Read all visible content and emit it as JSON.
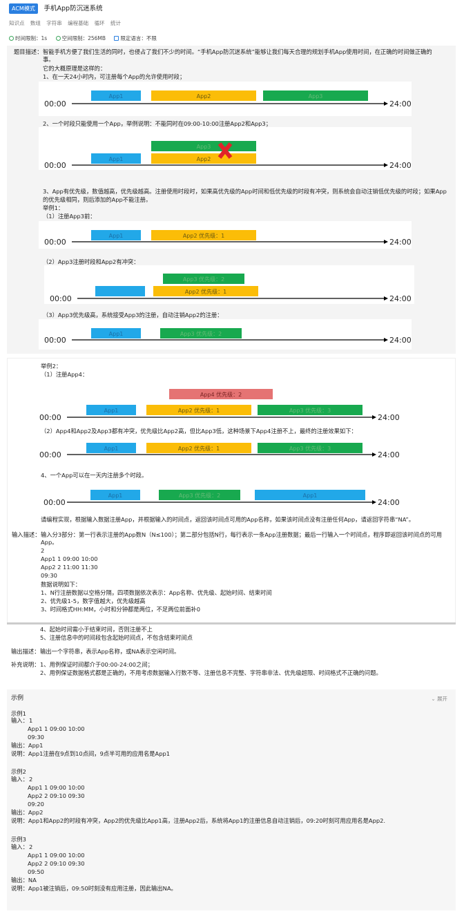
{
  "header": {
    "badge": "ACM模式",
    "title": "手机App防沉迷系统",
    "tags": [
      "知识点",
      "数组",
      "字符串",
      "编程基础",
      "循环",
      "统计"
    ],
    "limits": [
      "时间限制：1s",
      "空间限制：256MB",
      "限定语言：不限"
    ]
  },
  "desc": {
    "label": "题目描述：",
    "line1": "智能手机方便了我们生活的同时，也侵占了我们不少的时间。“手机App防沉迷系统”能够让我们每天合理的规划手机App使用时间，在正确的时间做正确的",
    "line2": "事。",
    "intro": "它的大概原理是这样的：",
    "p1": "1、在一天24小时内，可注册每个App的允许使用时段；",
    "p2": "2、一个时段只能使用一个App，举例说明：不能同时在09:00-10:00注册App2和App3；",
    "p3a": "3、App有优先级，数值越高，优先级越高。注册使用时段时，如果高优先级的App时间和低优先级的时段有冲突，则系统会自动注销低优先级的时段；如果App",
    "p3b": "的优先级相同，则后添加的App不能注册。",
    "ex1": "举例1：",
    "ex1a": "（1）注册App3前：",
    "ex1b": "（2）App3注册时段和App2有冲突：",
    "ex1c": "（3）App3优先级高，系统接受App3的注册，自动注销App2的注册：",
    "ex2": "举例2：",
    "ex2a": "（1）注册App4：",
    "ex2b": "（2）App4和App2及App3都有冲突，优先级比App2高，但比App3低，这种场景下App4注册不上，最终的注册效果如下：",
    "p4": "4、一个App可以在一天内注册多个时段。",
    "task": "请编程实现，根据输入数据注册App，并根据输入的时间点，返回该时间点可用的App名称，如果该时间点没有注册任何App，请返回字符串“NA”。"
  },
  "diagram": {
    "start": "00:00",
    "end": "24:00",
    "app1": "App1",
    "app2": "App2",
    "app3": "App3",
    "app2p1": "App2 优先级：1",
    "app3p2": "App3 优先级：2",
    "app3p3": "App3 优先级：3",
    "app4p2": "App4 优先级：2",
    "colors": {
      "blue": "#22a8e8",
      "yellow": "#fbbd08",
      "green": "#18a94f",
      "red": "#e57373",
      "cross": "#e0242a"
    }
  },
  "input": {
    "label": "输入描述：",
    "l1": "输入分3部分：第一行表示注册的App数N（N≤100）；第二部分包括N行，每行表示一条App注册数据；最后一行输入一个时间点，程序即返回该时间点的可用",
    "l2": "App。",
    "sample": [
      "2",
      "App1 1 09:00 10:00",
      "App2 2 11:00 11:30",
      "09:30"
    ],
    "notes_title": "数据说明如下：",
    "notes": [
      "1、N行注册数据以空格分隔，四项数据依次表示：App名称、优先级、起始时间、结束时间",
      "2、优先级1-5，数字值越大，优先级越高",
      "3、时间格式HH:MM，小时和分钟都是两位，不足两位前面补0"
    ],
    "notes2": [
      "4、起始时间需小于结束时间，否则注册不上",
      "5、注册信息中的时间段包含起始时间点，不包含结束时间点"
    ]
  },
  "output": {
    "label": "输出描述：",
    "text": "输出一个字符串，表示App名称，或NA表示空闲时间。"
  },
  "extra": {
    "label": "补充说明：",
    "l1": "1、用例保证时间都介于00:00-24:00之间；",
    "l2": "2、用例保证数据格式都是正确的，不用考虑数据输入行数不等、注册信息不完整、字符串非法、优先级超限、时间格式不正确的问题。"
  },
  "examples": {
    "title": "示例",
    "expand": "展开",
    "items": [
      {
        "name": "示例1",
        "in_label": "输入：",
        "in_first": "1",
        "in_rest": [
          "App1 1 09:00 10:00",
          "09:30"
        ],
        "out": "输出：App1",
        "explain": "说明：App1注册在9点到10点间，9点半可用的应用名是App1"
      },
      {
        "name": "示例2",
        "in_label": "输入：",
        "in_first": "2",
        "in_rest": [
          "App1 1 09:00 10:00",
          "App2 2 09:10 09:30",
          "09:20"
        ],
        "out": "输出：App2",
        "explain": "说明：App1和App2的时段有冲突，App2的优先级比App1高，注册App2后，系统将App1的注册信息自动注销后，09:20时刻可用应用名是App2."
      },
      {
        "name": "示例3",
        "in_label": "输入：",
        "in_first": "2",
        "in_rest": [
          "App1 1 09:00 10:00",
          "App2 2 09:10 09:30",
          "09:50"
        ],
        "out": "输出：NA",
        "explain": "说明：App1被注销后，09:50时刻没有应用注册，因此输出NA。"
      }
    ]
  }
}
